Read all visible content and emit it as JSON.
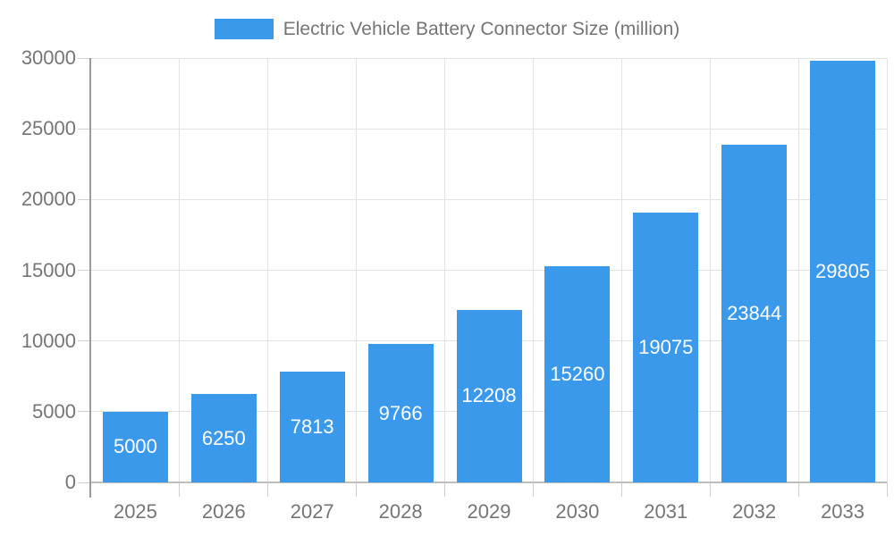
{
  "legend": {
    "label": "Electric Vehicle Battery Connector Size (million)"
  },
  "chart_data": {
    "type": "bar",
    "title": "Electric Vehicle Battery Connector Size (million)",
    "categories": [
      "2025",
      "2026",
      "2027",
      "2028",
      "2029",
      "2030",
      "2031",
      "2032",
      "2033"
    ],
    "series": [
      {
        "name": "Electric Vehicle Battery Connector Size (million)",
        "values": [
          5000,
          6250,
          7813,
          9766,
          12208,
          15260,
          19075,
          23844,
          29805
        ]
      }
    ],
    "xlabel": "",
    "ylabel": "",
    "ylim": [
      0,
      30000
    ],
    "yticks": [
      0,
      5000,
      10000,
      15000,
      20000,
      25000,
      30000
    ],
    "grid": true,
    "legend_position": "top",
    "bar_labels_visible": true,
    "bar_label_position": "center-inside",
    "colors": {
      "bar": "#3b99ec",
      "bar_label": "#ffffff",
      "axis_text": "#757575",
      "legend_text": "#757575",
      "gridline": "#e2e2e2",
      "tick": "#cfcfcf",
      "axis_line": "#9a9a9a",
      "baseline": "#bdbdbd",
      "background": "#ffffff"
    }
  }
}
